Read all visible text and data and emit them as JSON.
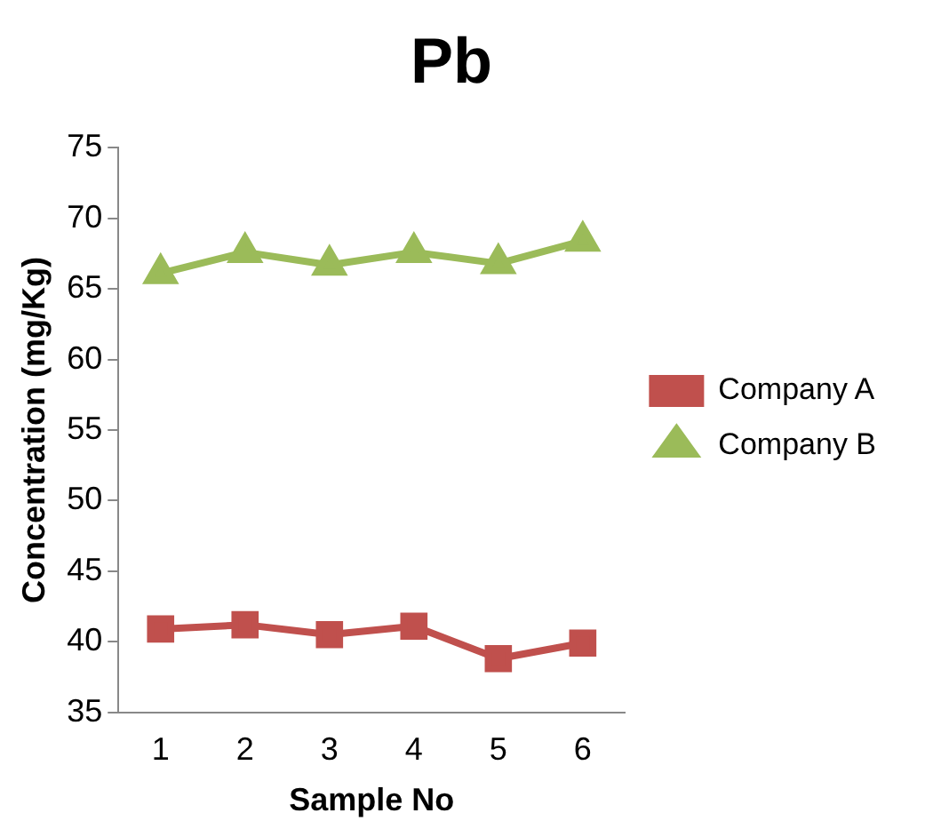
{
  "chart_data": {
    "type": "line",
    "title": "Pb",
    "xlabel": "Sample No",
    "ylabel": "Concentration (mg/Kg)",
    "categories": [
      "1",
      "2",
      "3",
      "4",
      "5",
      "6"
    ],
    "series": [
      {
        "name": "Company A",
        "color": "#c0504d",
        "marker": "square",
        "values": [
          40.9,
          41.2,
          40.5,
          41.1,
          38.8,
          39.9
        ]
      },
      {
        "name": "Company B",
        "color": "#9bbb59",
        "marker": "triangle",
        "values": [
          66.1,
          67.6,
          66.7,
          67.6,
          66.8,
          68.4
        ]
      }
    ],
    "ylim": [
      35,
      75
    ],
    "yticks": [
      35,
      40,
      45,
      50,
      55,
      60,
      65,
      70,
      75
    ],
    "grid": false,
    "legend": "right"
  }
}
